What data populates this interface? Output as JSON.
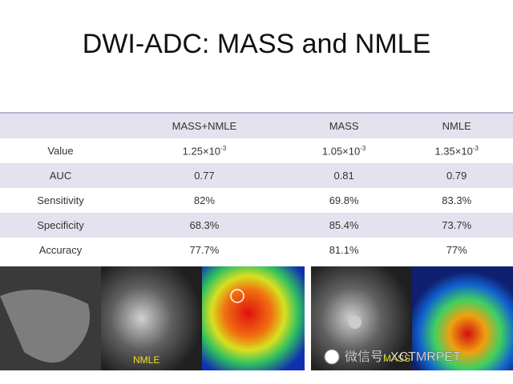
{
  "title": "DWI-ADC: MASS and NMLE",
  "table": {
    "header": [
      "MASS+NMLE",
      "MASS",
      "NMLE"
    ],
    "rows": [
      {
        "label": "Value",
        "cells": [
          {
            "base": "1.25×10",
            "exp": "-3"
          },
          {
            "base": "1.05×10",
            "exp": "-3"
          },
          {
            "base": "1.35×10",
            "exp": "-3"
          }
        ]
      },
      {
        "label": "AUC",
        "cells": [
          "0.77",
          "0.81",
          "0.79"
        ]
      },
      {
        "label": "Sensitivity",
        "cells": [
          "82%",
          "69.8%",
          "83.3%"
        ]
      },
      {
        "label": "Specificity",
        "cells": [
          "68.3%",
          "85.4%",
          "73.7%"
        ]
      },
      {
        "label": "Accuracy",
        "cells": [
          "77.7%",
          "81.1%",
          "77%"
        ]
      }
    ]
  },
  "images": {
    "left_label": "NMLE",
    "right_label": "MASS",
    "watermark": "微信号: XCTMRPET"
  }
}
